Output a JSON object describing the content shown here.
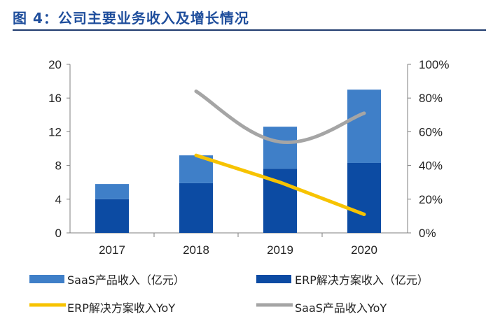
{
  "figure_title": "图 4：公司主要业务收入及增长情况",
  "colors": {
    "saas": "#3f7fc8",
    "erp": "#0c4ba3",
    "erp_yoy": "#f7c300",
    "saas_yoy": "#a5a5a5",
    "axis": "#7f7f7f"
  },
  "chart_data": {
    "type": "bar",
    "stacked": true,
    "categories": [
      "2017",
      "2018",
      "2019",
      "2020"
    ],
    "series": [
      {
        "name": "ERP解决方案收入（亿元）",
        "type": "bar",
        "axis": "left",
        "values": [
          4.0,
          5.9,
          7.6,
          8.3
        ]
      },
      {
        "name": "SaaS产品收入（亿元）",
        "type": "bar",
        "axis": "left",
        "values": [
          1.8,
          3.3,
          5.0,
          8.7
        ]
      },
      {
        "name": "ERP解决方案收入YoY",
        "type": "line",
        "axis": "right",
        "values": [
          null,
          0.46,
          0.3,
          0.11
        ]
      },
      {
        "name": "SaaS产品收入YoY",
        "type": "line",
        "axis": "right",
        "values": [
          null,
          0.84,
          0.54,
          0.71
        ]
      }
    ],
    "ylim": [
      0,
      20
    ],
    "yticks": [
      "0",
      "4",
      "8",
      "12",
      "16",
      "20"
    ],
    "y2lim": [
      0,
      1
    ],
    "y2ticks": [
      "0%",
      "20%",
      "40%",
      "60%",
      "80%",
      "100%"
    ],
    "legend": [
      "SaaS产品收入（亿元）",
      "ERP解决方案收入（亿元）",
      "ERP解决方案收入YoY",
      "SaaS产品收入YoY"
    ],
    "legend_position": "bottom"
  }
}
